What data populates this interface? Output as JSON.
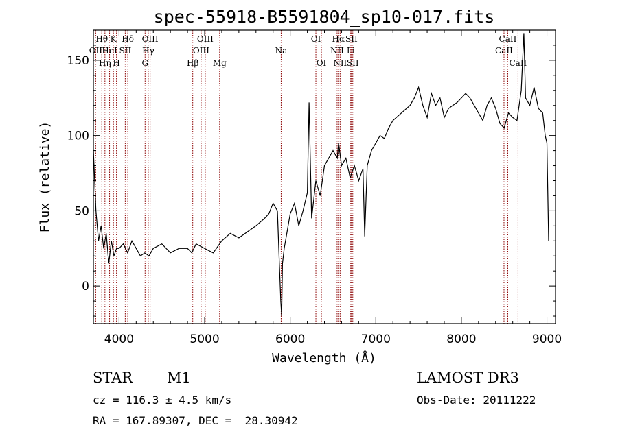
{
  "chart_data": {
    "type": "line",
    "title": "spec-55918-B5591804_sp10-017.fits",
    "xlabel": "Wavelength (Å)",
    "ylabel": "Flux (relative)",
    "xlim": [
      3700,
      9100
    ],
    "ylim": [
      -25,
      170
    ],
    "x_ticks": [
      4000,
      5000,
      6000,
      7000,
      8000,
      9000
    ],
    "y_ticks": [
      0,
      50,
      100,
      150
    ],
    "grid": false,
    "series": [
      {
        "x": [
          3700,
          3730,
          3760,
          3790,
          3820,
          3850,
          3880,
          3910,
          3940,
          3970,
          4000,
          4050,
          4100,
          4150,
          4200,
          4250,
          4300,
          4350,
          4400,
          4500,
          4600,
          4700,
          4800,
          4850,
          4900,
          5000,
          5100,
          5200,
          5300,
          5400,
          5500,
          5600,
          5700,
          5750,
          5800,
          5850,
          5870,
          5890,
          5900,
          5910,
          5930,
          5960,
          6000,
          6050,
          6100,
          6150,
          6200,
          6220,
          6250,
          6300,
          6350,
          6400,
          6450,
          6500,
          6550,
          6565,
          6600,
          6650,
          6700,
          6750,
          6800,
          6850,
          6870,
          6900,
          6950,
          7000,
          7050,
          7100,
          7150,
          7200,
          7300,
          7400,
          7450,
          7500,
          7550,
          7600,
          7650,
          7700,
          7750,
          7800,
          7850,
          7900,
          7950,
          8000,
          8050,
          8100,
          8150,
          8200,
          8250,
          8300,
          8350,
          8400,
          8450,
          8500,
          8550,
          8600,
          8650,
          8700,
          8730,
          8750,
          8800,
          8850,
          8900,
          8950,
          8980,
          9000,
          9020
        ],
        "y": [
          90,
          50,
          30,
          40,
          25,
          35,
          15,
          30,
          20,
          25,
          25,
          28,
          22,
          30,
          25,
          20,
          22,
          20,
          25,
          28,
          22,
          25,
          25,
          22,
          28,
          25,
          22,
          30,
          35,
          32,
          36,
          40,
          45,
          48,
          55,
          50,
          20,
          -10,
          -20,
          15,
          25,
          35,
          48,
          55,
          40,
          50,
          62,
          122,
          45,
          70,
          60,
          80,
          85,
          90,
          85,
          95,
          80,
          85,
          72,
          80,
          70,
          78,
          33,
          80,
          90,
          95,
          100,
          98,
          105,
          110,
          115,
          120,
          125,
          132,
          120,
          112,
          128,
          120,
          125,
          112,
          118,
          120,
          122,
          125,
          128,
          125,
          120,
          115,
          110,
          120,
          125,
          118,
          108,
          105,
          115,
          112,
          110,
          130,
          168,
          125,
          120,
          132,
          118,
          115,
          100,
          95,
          30
        ]
      }
    ],
    "emission_lines": [
      {
        "x": 3727,
        "label": "OII",
        "row": 2
      },
      {
        "x": 3798,
        "label": "Hθ",
        "row": 1
      },
      {
        "x": 3835,
        "label": "Hη",
        "row": 3
      },
      {
        "x": 3889,
        "label": "HeI",
        "row": 2
      },
      {
        "x": 3934,
        "label": "K",
        "row": 1
      },
      {
        "x": 3970,
        "label": "H",
        "row": 3
      },
      {
        "x": 4072,
        "label": "SII",
        "row": 2
      },
      {
        "x": 4102,
        "label": "Hδ",
        "row": 1
      },
      {
        "x": 4304,
        "label": "G",
        "row": 3
      },
      {
        "x": 4341,
        "label": "Hγ",
        "row": 2
      },
      {
        "x": 4363,
        "label": "OIII",
        "row": 1
      },
      {
        "x": 4861,
        "label": "Hβ",
        "row": 3
      },
      {
        "x": 4959,
        "label": "OIII",
        "row": 2
      },
      {
        "x": 5007,
        "label": "OIII",
        "row": 1
      },
      {
        "x": 5175,
        "label": "Mg",
        "row": 3
      },
      {
        "x": 5894,
        "label": "Na",
        "row": 2
      },
      {
        "x": 6300,
        "label": "OI",
        "row": 1
      },
      {
        "x": 6364,
        "label": "OI",
        "row": 3
      },
      {
        "x": 6548,
        "label": "NII",
        "row": 2
      },
      {
        "x": 6563,
        "label": "Hα",
        "row": 1
      },
      {
        "x": 6583,
        "label": "NII",
        "row": 3
      },
      {
        "x": 6707,
        "label": "Li",
        "row": 2
      },
      {
        "x": 6716,
        "label": "SII",
        "row": 1
      },
      {
        "x": 6731,
        "label": "SII",
        "row": 3
      },
      {
        "x": 8498,
        "label": "CaII",
        "row": 2
      },
      {
        "x": 8542,
        "label": "CaII",
        "row": 1
      },
      {
        "x": 8662,
        "label": "CaII",
        "row": 3
      }
    ],
    "line_color": "#8b0000",
    "spectrum_color": "#000000"
  },
  "info": {
    "object_class": "STAR",
    "subclass": "M1",
    "survey": "LAMOST DR3",
    "redshift": "cz = 116.3 ± 4.5 km/s",
    "obs_date": "Obs-Date: 20111222",
    "coords": "RA = 167.89307, DEC =  28.30942"
  }
}
